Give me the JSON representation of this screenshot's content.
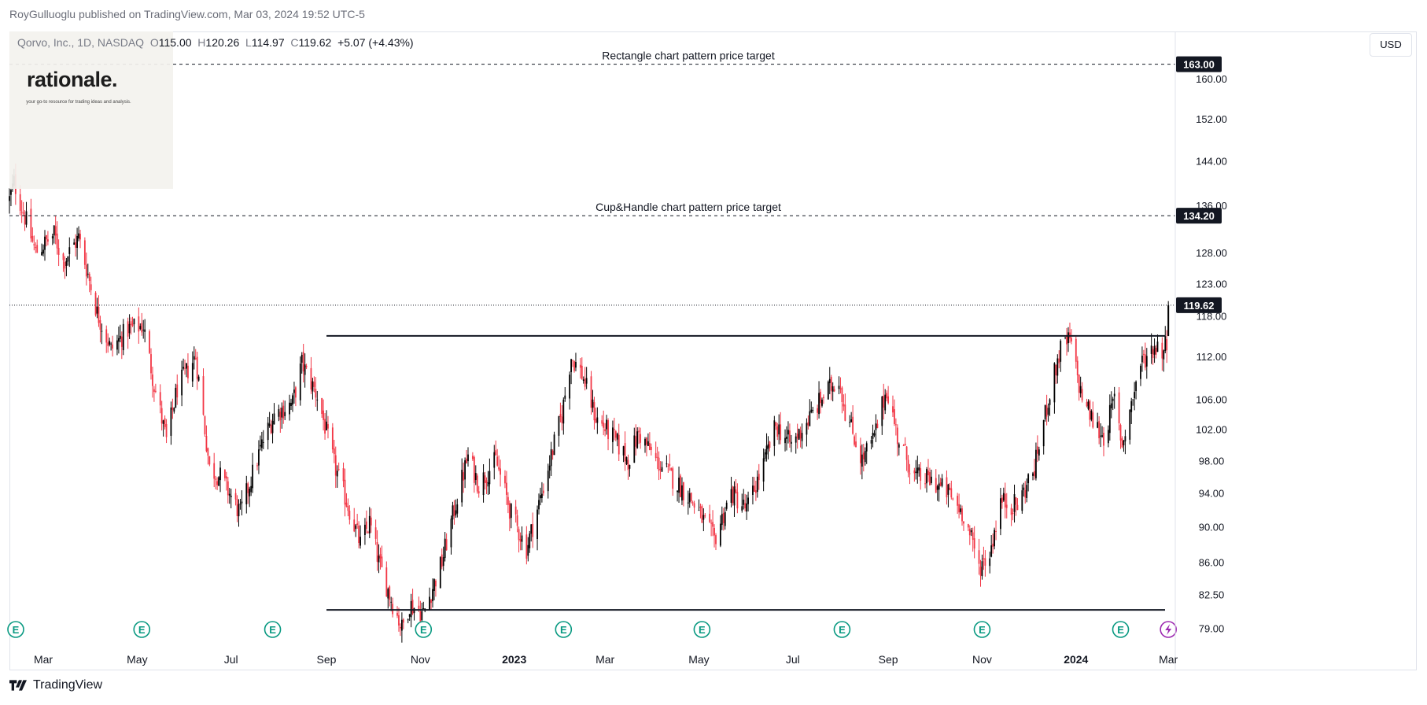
{
  "header": {
    "publisher_line": "RoyGulluoglu published on TradingView.com, Mar 03, 2024 19:52 UTC-5"
  },
  "legend": {
    "symbol": "Qorvo, Inc., 1D, NASDAQ",
    "open_label": "O",
    "open": "115.00",
    "high_label": "H",
    "high": "120.26",
    "low_label": "L",
    "low": "114.97",
    "close_label": "C",
    "close": "119.62",
    "change": "+5.07 (+4.43%)"
  },
  "logo": {
    "name": "rationale.",
    "tagline": "your go-to resource for trading ideas and analysis."
  },
  "currency_button": "USD",
  "footer": {
    "brand": "TradingView"
  },
  "colors": {
    "up": "#000000",
    "down": "#f23645",
    "earnings": "#089981",
    "dividend": "#9c27b0",
    "last_price": "#131722"
  },
  "chart_data": {
    "type": "candlestick",
    "x_axis_labels": [
      {
        "label": "Mar",
        "date": "2022-03-01"
      },
      {
        "label": "May",
        "date": "2022-05-01"
      },
      {
        "label": "Jul",
        "date": "2022-07-01"
      },
      {
        "label": "Sep",
        "date": "2022-09-01"
      },
      {
        "label": "Nov",
        "date": "2022-11-01"
      },
      {
        "label": "2023",
        "date": "2023-01-01",
        "bold": true
      },
      {
        "label": "Mar",
        "date": "2023-03-01"
      },
      {
        "label": "May",
        "date": "2023-05-01"
      },
      {
        "label": "Jul",
        "date": "2023-07-01"
      },
      {
        "label": "Sep",
        "date": "2023-09-01"
      },
      {
        "label": "Nov",
        "date": "2023-11-01"
      },
      {
        "label": "2024",
        "date": "2024-01-01",
        "bold": true
      },
      {
        "label": "Mar",
        "date": "2024-03-01"
      }
    ],
    "y_axis_ticks": [
      "79.00",
      "82.50",
      "86.00",
      "90.00",
      "94.00",
      "98.00",
      "102.00",
      "106.00",
      "112.00",
      "118.00",
      "123.00",
      "128.00",
      "136.00",
      "144.00",
      "152.00",
      "160.00"
    ],
    "scale": "log",
    "ylim": [
      77.0,
      170.0
    ],
    "xlim": [
      "2022-02-07",
      "2024-03-05"
    ],
    "price_labels": [
      {
        "value": 163.0,
        "text": "163.00"
      },
      {
        "value": 134.2,
        "text": "134.20"
      },
      {
        "value": 119.62,
        "text": "119.62"
      }
    ],
    "annotations": [
      {
        "text": "Rectangle chart pattern price target",
        "price": 163.0,
        "style": "dashed"
      },
      {
        "text": "Cup&Handle chart pattern price target",
        "price": 134.2,
        "style": "dashed"
      }
    ],
    "horizontal_lines": [
      {
        "price": 115.0,
        "from": "2022-09-01",
        "to": "2024-03-05"
      },
      {
        "price": 80.9,
        "from": "2022-09-01",
        "to": "2024-03-05"
      }
    ],
    "last_price_line": 119.62,
    "earnings_markers": [
      "2022-02-05",
      "2022-05-04",
      "2022-07-28",
      "2022-11-03",
      "2023-02-02",
      "2023-05-03",
      "2023-08-02",
      "2023-11-01",
      "2024-01-30"
    ],
    "dividend_markers": [
      "2024-03-01"
    ],
    "price_anchors": [
      {
        "date": "2022-02-07",
        "close": 137.0
      },
      {
        "date": "2022-02-10",
        "close": 140.0
      },
      {
        "date": "2022-02-24",
        "close": 128.0
      },
      {
        "date": "2022-03-08",
        "close": 131.0
      },
      {
        "date": "2022-03-14",
        "close": 126.5
      },
      {
        "date": "2022-03-24",
        "close": 130.5
      },
      {
        "date": "2022-04-05",
        "close": 118.5
      },
      {
        "date": "2022-04-14",
        "close": 113.0
      },
      {
        "date": "2022-04-25",
        "close": 116.0
      },
      {
        "date": "2022-05-05",
        "close": 116.5
      },
      {
        "date": "2022-05-12",
        "close": 108.0
      },
      {
        "date": "2022-05-20",
        "close": 100.5
      },
      {
        "date": "2022-05-27",
        "close": 107.5
      },
      {
        "date": "2022-06-08",
        "close": 112.0
      },
      {
        "date": "2022-06-17",
        "close": 97.0
      },
      {
        "date": "2022-06-24",
        "close": 96.0
      },
      {
        "date": "2022-07-07",
        "close": 91.5
      },
      {
        "date": "2022-07-21",
        "close": 100.0
      },
      {
        "date": "2022-07-29",
        "close": 104.0
      },
      {
        "date": "2022-08-10",
        "close": 105.5
      },
      {
        "date": "2022-08-16",
        "close": 111.0
      },
      {
        "date": "2022-08-26",
        "close": 106.5
      },
      {
        "date": "2022-09-06",
        "close": 97.5
      },
      {
        "date": "2022-09-23",
        "close": 88.0
      },
      {
        "date": "2022-09-29",
        "close": 90.5
      },
      {
        "date": "2022-10-05",
        "close": 86.0
      },
      {
        "date": "2022-10-13",
        "close": 82.0
      },
      {
        "date": "2022-10-20",
        "close": 79.0
      },
      {
        "date": "2022-10-25",
        "close": 81.5
      },
      {
        "date": "2022-11-03",
        "close": 80.5
      },
      {
        "date": "2022-11-15",
        "close": 86.0
      },
      {
        "date": "2022-11-25",
        "close": 93.5
      },
      {
        "date": "2022-12-02",
        "close": 98.5
      },
      {
        "date": "2022-12-09",
        "close": 95.0
      },
      {
        "date": "2022-12-20",
        "close": 98.0
      },
      {
        "date": "2022-12-30",
        "close": 91.5
      },
      {
        "date": "2023-01-09",
        "close": 87.5
      },
      {
        "date": "2023-01-19",
        "close": 94.0
      },
      {
        "date": "2023-02-01",
        "close": 104.0
      },
      {
        "date": "2023-02-07",
        "close": 112.0
      },
      {
        "date": "2023-02-14",
        "close": 109.5
      },
      {
        "date": "2023-02-23",
        "close": 103.5
      },
      {
        "date": "2023-03-06",
        "close": 101.0
      },
      {
        "date": "2023-03-16",
        "close": 98.0
      },
      {
        "date": "2023-03-23",
        "close": 101.5
      },
      {
        "date": "2023-04-03",
        "close": 98.0
      },
      {
        "date": "2023-04-13",
        "close": 96.0
      },
      {
        "date": "2023-04-25",
        "close": 93.5
      },
      {
        "date": "2023-05-03",
        "close": 91.0
      },
      {
        "date": "2023-05-11",
        "close": 88.5
      },
      {
        "date": "2023-05-22",
        "close": 94.0
      },
      {
        "date": "2023-06-01",
        "close": 92.0
      },
      {
        "date": "2023-06-12",
        "close": 97.5
      },
      {
        "date": "2023-06-20",
        "close": 102.5
      },
      {
        "date": "2023-06-30",
        "close": 100.0
      },
      {
        "date": "2023-07-12",
        "close": 103.5
      },
      {
        "date": "2023-07-21",
        "close": 106.5
      },
      {
        "date": "2023-07-31",
        "close": 109.0
      },
      {
        "date": "2023-08-04",
        "close": 104.5
      },
      {
        "date": "2023-08-15",
        "close": 98.0
      },
      {
        "date": "2023-08-23",
        "close": 101.0
      },
      {
        "date": "2023-08-31",
        "close": 107.5
      },
      {
        "date": "2023-09-07",
        "close": 101.0
      },
      {
        "date": "2023-09-18",
        "close": 96.0
      },
      {
        "date": "2023-09-29",
        "close": 95.5
      },
      {
        "date": "2023-10-10",
        "close": 94.0
      },
      {
        "date": "2023-10-20",
        "close": 91.5
      },
      {
        "date": "2023-10-30",
        "close": 85.5
      },
      {
        "date": "2023-11-06",
        "close": 87.0
      },
      {
        "date": "2023-11-13",
        "close": 93.0
      },
      {
        "date": "2023-11-24",
        "close": 92.5
      },
      {
        "date": "2023-12-05",
        "close": 97.0
      },
      {
        "date": "2023-12-14",
        "close": 106.0
      },
      {
        "date": "2023-12-22",
        "close": 113.0
      },
      {
        "date": "2023-12-28",
        "close": 114.5
      },
      {
        "date": "2024-01-04",
        "close": 107.0
      },
      {
        "date": "2024-01-12",
        "close": 103.0
      },
      {
        "date": "2024-01-19",
        "close": 101.0
      },
      {
        "date": "2024-01-26",
        "close": 106.0
      },
      {
        "date": "2024-01-31",
        "close": 100.0
      },
      {
        "date": "2024-02-05",
        "close": 104.5
      },
      {
        "date": "2024-02-12",
        "close": 111.0
      },
      {
        "date": "2024-02-21",
        "close": 113.5
      },
      {
        "date": "2024-02-27",
        "close": 113.0
      },
      {
        "date": "2024-02-29",
        "close": 114.55
      },
      {
        "date": "2024-03-01",
        "close": 119.62
      }
    ],
    "last_bar": {
      "date": "2024-03-01",
      "open": 115.0,
      "high": 120.26,
      "low": 114.97,
      "close": 119.62
    }
  }
}
